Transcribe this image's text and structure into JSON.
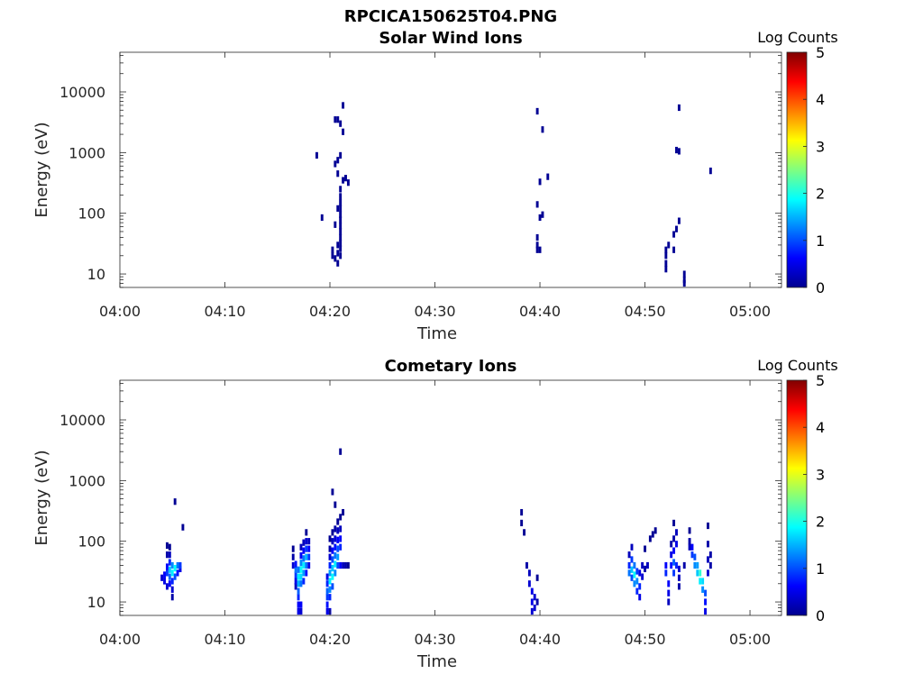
{
  "figure_title": "RPCICA150625T04.PNG",
  "chart_data": [
    {
      "type": "heatmap",
      "title": "Solar Wind Ions",
      "xlabel": "Time",
      "ylabel": "Energy (eV)",
      "xticks": [
        "04:00",
        "04:10",
        "04:20",
        "04:30",
        "04:40",
        "04:50",
        "05:00"
      ],
      "xlim": [
        "04:00",
        "05:03"
      ],
      "ylim": [
        6,
        45000
      ],
      "yscale": "log",
      "yticks": [
        "10",
        "100",
        "1000",
        "10000"
      ],
      "colorbar": {
        "label": "Log Counts",
        "min": 0,
        "max": 5,
        "ticks": [
          "0",
          "1",
          "2",
          "3",
          "4",
          "5"
        ]
      },
      "cells": [
        [
          "04:18:45",
          900,
          0.1
        ],
        [
          "04:19:15",
          85,
          0.1
        ],
        [
          "04:20:15",
          25,
          0.1
        ],
        [
          "04:20:15",
          20,
          0.1
        ],
        [
          "04:20:30",
          18,
          0.1
        ],
        [
          "04:20:30",
          65,
          0.1
        ],
        [
          "04:20:30",
          650,
          0.1
        ],
        [
          "04:20:30",
          3500,
          0.1
        ],
        [
          "04:20:45",
          15,
          0.1
        ],
        [
          "04:20:45",
          22,
          0.1
        ],
        [
          "04:20:45",
          30,
          0.1
        ],
        [
          "04:20:45",
          120,
          0.1
        ],
        [
          "04:20:45",
          450,
          0.1
        ],
        [
          "04:20:45",
          750,
          0.1
        ],
        [
          "04:20:45",
          3500,
          0.1
        ],
        [
          "04:21:00",
          20,
          0.1
        ],
        [
          "04:21:00",
          26,
          0.1
        ],
        [
          "04:21:00",
          32,
          0.1
        ],
        [
          "04:21:00",
          40,
          0.1
        ],
        [
          "04:21:00",
          50,
          0.1
        ],
        [
          "04:21:00",
          62,
          0.1
        ],
        [
          "04:21:00",
          78,
          0.1
        ],
        [
          "04:21:00",
          95,
          0.1
        ],
        [
          "04:21:00",
          120,
          0.1
        ],
        [
          "04:21:00",
          150,
          0.1
        ],
        [
          "04:21:00",
          190,
          0.1
        ],
        [
          "04:21:00",
          250,
          0.1
        ],
        [
          "04:21:00",
          900,
          0.1
        ],
        [
          "04:21:00",
          3000,
          0.1
        ],
        [
          "04:21:15",
          350,
          0.1
        ],
        [
          "04:21:15",
          2200,
          0.1
        ],
        [
          "04:21:15",
          6000,
          0.1
        ],
        [
          "04:21:30",
          380,
          0.1
        ],
        [
          "04:21:45",
          320,
          0.1
        ],
        [
          "04:39:45",
          25,
          0.1
        ],
        [
          "04:39:45",
          30,
          0.1
        ],
        [
          "04:39:45",
          40,
          0.1
        ],
        [
          "04:39:45",
          140,
          0.1
        ],
        [
          "04:39:45",
          4800,
          0.1
        ],
        [
          "04:40:00",
          85,
          0.1
        ],
        [
          "04:40:00",
          330,
          0.1
        ],
        [
          "04:40:15",
          95,
          0.1
        ],
        [
          "04:40:15",
          2400,
          0.1
        ],
        [
          "04:40:00",
          25,
          0.1
        ],
        [
          "04:40:45",
          400,
          0.1
        ],
        [
          "04:52:00",
          12,
          0.1
        ],
        [
          "04:52:00",
          15,
          0.1
        ],
        [
          "04:52:00",
          20,
          0.1
        ],
        [
          "04:52:00",
          25,
          0.1
        ],
        [
          "04:52:15",
          30,
          0.1
        ],
        [
          "04:52:45",
          25,
          0.1
        ],
        [
          "04:52:45",
          45,
          0.1
        ],
        [
          "04:53:00",
          55,
          0.1
        ],
        [
          "04:53:00",
          1100,
          0.1
        ],
        [
          "04:53:15",
          75,
          0.1
        ],
        [
          "04:53:15",
          1050,
          0.1
        ],
        [
          "04:53:15",
          5500,
          0.1
        ],
        [
          "04:53:45",
          7,
          0.1
        ],
        [
          "04:53:45",
          8,
          0.1
        ],
        [
          "04:53:45",
          10,
          0.1
        ],
        [
          "04:56:15",
          500,
          0.1
        ]
      ]
    },
    {
      "type": "heatmap",
      "title": "Cometary Ions",
      "xlabel": "Time",
      "ylabel": "Energy (eV)",
      "xticks": [
        "04:00",
        "04:10",
        "04:20",
        "04:30",
        "04:40",
        "04:50",
        "05:00"
      ],
      "xlim": [
        "04:00",
        "05:03"
      ],
      "ylim": [
        6,
        45000
      ],
      "yscale": "log",
      "yticks": [
        "10",
        "100",
        "1000",
        "10000"
      ],
      "colorbar": {
        "label": "Log Counts",
        "min": 0,
        "max": 5,
        "ticks": [
          "0",
          "1",
          "2",
          "3",
          "4",
          "5"
        ]
      },
      "cells": [
        [
          "04:04:00",
          25,
          0.4
        ],
        [
          "04:04:15",
          22,
          0.5
        ],
        [
          "04:04:15",
          28,
          0.6
        ],
        [
          "04:04:30",
          18,
          0.4
        ],
        [
          "04:04:30",
          30,
          0.9
        ],
        [
          "04:04:30",
          38,
          0.6
        ],
        [
          "04:04:30",
          60,
          0.2
        ],
        [
          "04:04:30",
          85,
          0.1
        ],
        [
          "04:04:45",
          20,
          0.6
        ],
        [
          "04:04:45",
          26,
          1.1
        ],
        [
          "04:04:45",
          34,
          1.6
        ],
        [
          "04:04:45",
          45,
          0.8
        ],
        [
          "04:04:45",
          60,
          0.3
        ],
        [
          "04:04:45",
          80,
          0.1
        ],
        [
          "04:05:00",
          22,
          0.8
        ],
        [
          "04:05:00",
          30,
          1.8
        ],
        [
          "04:05:00",
          40,
          1.3
        ],
        [
          "04:05:00",
          12,
          0.2
        ],
        [
          "04:05:00",
          16,
          0.4
        ],
        [
          "04:05:15",
          26,
          1.0
        ],
        [
          "04:05:15",
          36,
          1.9
        ],
        [
          "04:05:15",
          450,
          0.1
        ],
        [
          "04:05:30",
          30,
          0.7
        ],
        [
          "04:05:30",
          40,
          1.2
        ],
        [
          "04:05:45",
          35,
          0.5
        ],
        [
          "04:05:45",
          40,
          0.9
        ],
        [
          "04:06:00",
          170,
          0.1
        ],
        [
          "04:16:30",
          40,
          0.4
        ],
        [
          "04:16:30",
          55,
          0.2
        ],
        [
          "04:16:30",
          75,
          0.1
        ],
        [
          "04:16:45",
          18,
          0.3
        ],
        [
          "04:16:45",
          22,
          0.5
        ],
        [
          "04:16:45",
          28,
          0.9
        ],
        [
          "04:16:45",
          34,
          1.2
        ],
        [
          "04:16:45",
          42,
          0.7
        ],
        [
          "04:17:00",
          7,
          0.5
        ],
        [
          "04:17:00",
          9,
          0.6
        ],
        [
          "04:17:00",
          12,
          0.8
        ],
        [
          "04:17:00",
          15,
          1.1
        ],
        [
          "04:17:00",
          20,
          1.5
        ],
        [
          "04:17:00",
          26,
          1.8
        ],
        [
          "04:17:00",
          34,
          1.2
        ],
        [
          "04:17:15",
          7,
          0.4
        ],
        [
          "04:17:15",
          9,
          0.6
        ],
        [
          "04:17:15",
          20,
          1.2
        ],
        [
          "04:17:15",
          26,
          1.7
        ],
        [
          "04:17:15",
          34,
          1.9
        ],
        [
          "04:17:15",
          44,
          1.3
        ],
        [
          "04:17:15",
          58,
          0.6
        ],
        [
          "04:17:15",
          80,
          0.3
        ],
        [
          "04:17:30",
          22,
          0.8
        ],
        [
          "04:17:30",
          30,
          1.4
        ],
        [
          "04:17:30",
          40,
          1.8
        ],
        [
          "04:17:30",
          52,
          1.2
        ],
        [
          "04:17:30",
          70,
          0.6
        ],
        [
          "04:17:30",
          95,
          0.3
        ],
        [
          "04:17:45",
          30,
          0.7
        ],
        [
          "04:17:45",
          40,
          1.2
        ],
        [
          "04:17:45",
          55,
          1.5
        ],
        [
          "04:17:45",
          75,
          0.9
        ],
        [
          "04:17:45",
          100,
          0.4
        ],
        [
          "04:17:45",
          140,
          0.1
        ],
        [
          "04:18:00",
          40,
          0.5
        ],
        [
          "04:18:00",
          55,
          0.9
        ],
        [
          "04:18:00",
          75,
          0.6
        ],
        [
          "04:18:00",
          100,
          0.3
        ],
        [
          "04:19:45",
          7,
          0.5
        ],
        [
          "04:19:45",
          9,
          0.7
        ],
        [
          "04:19:45",
          12,
          0.9
        ],
        [
          "04:19:45",
          15,
          1.1
        ],
        [
          "04:19:45",
          20,
          0.8
        ],
        [
          "04:19:45",
          26,
          0.5
        ],
        [
          "04:20:00",
          7,
          0.4
        ],
        [
          "04:20:00",
          12,
          0.8
        ],
        [
          "04:20:00",
          16,
          1.3
        ],
        [
          "04:20:00",
          22,
          1.8
        ],
        [
          "04:20:00",
          30,
          1.4
        ],
        [
          "04:20:00",
          40,
          0.8
        ],
        [
          "04:20:00",
          55,
          0.4
        ],
        [
          "04:20:00",
          75,
          0.2
        ],
        [
          "04:20:00",
          110,
          0.1
        ],
        [
          "04:20:15",
          18,
          1.0
        ],
        [
          "04:20:15",
          26,
          1.9
        ],
        [
          "04:20:15",
          36,
          1.6
        ],
        [
          "04:20:15",
          50,
          1.0
        ],
        [
          "04:20:15",
          70,
          0.6
        ],
        [
          "04:20:15",
          100,
          0.3
        ],
        [
          "04:20:15",
          140,
          0.1
        ],
        [
          "04:20:15",
          650,
          0.1
        ],
        [
          "04:20:30",
          30,
          1.3
        ],
        [
          "04:20:30",
          42,
          1.8
        ],
        [
          "04:20:30",
          58,
          1.2
        ],
        [
          "04:20:30",
          80,
          0.7
        ],
        [
          "04:20:30",
          110,
          0.4
        ],
        [
          "04:20:30",
          160,
          0.2
        ],
        [
          "04:20:30",
          400,
          0.1
        ],
        [
          "04:20:45",
          40,
          1.0
        ],
        [
          "04:20:45",
          55,
          1.4
        ],
        [
          "04:20:45",
          75,
          1.0
        ],
        [
          "04:20:45",
          105,
          0.6
        ],
        [
          "04:20:45",
          150,
          0.3
        ],
        [
          "04:20:45",
          210,
          0.1
        ],
        [
          "04:21:00",
          40,
          0.6
        ],
        [
          "04:21:00",
          80,
          0.8
        ],
        [
          "04:21:00",
          110,
          0.6
        ],
        [
          "04:21:00",
          160,
          0.3
        ],
        [
          "04:21:00",
          250,
          0.1
        ],
        [
          "04:21:00",
          3000,
          0.1
        ],
        [
          "04:21:15",
          40,
          0.3
        ],
        [
          "04:21:15",
          300,
          0.1
        ],
        [
          "04:21:30",
          40,
          0.2
        ],
        [
          "04:21:45",
          40,
          0.1
        ],
        [
          "04:38:15",
          300,
          0.1
        ],
        [
          "04:38:15",
          200,
          0.1
        ],
        [
          "04:38:30",
          140,
          0.1
        ],
        [
          "04:38:45",
          40,
          0.2
        ],
        [
          "04:39:00",
          30,
          0.3
        ],
        [
          "04:39:00",
          20,
          0.4
        ],
        [
          "04:39:15",
          15,
          0.5
        ],
        [
          "04:39:15",
          10,
          0.5
        ],
        [
          "04:39:15",
          7,
          0.4
        ],
        [
          "04:39:30",
          12,
          0.4
        ],
        [
          "04:39:30",
          8,
          0.4
        ],
        [
          "04:39:45",
          25,
          0.1
        ],
        [
          "04:39:45",
          10,
          0.2
        ],
        [
          "04:48:30",
          30,
          1.2
        ],
        [
          "04:48:30",
          40,
          0.8
        ],
        [
          "04:48:30",
          60,
          0.3
        ],
        [
          "04:48:45",
          25,
          1.0
        ],
        [
          "04:48:45",
          34,
          1.6
        ],
        [
          "04:48:45",
          50,
          0.9
        ],
        [
          "04:48:45",
          80,
          0.3
        ],
        [
          "04:49:00",
          20,
          1.3
        ],
        [
          "04:49:00",
          28,
          1.9
        ],
        [
          "04:49:00",
          40,
          1.2
        ],
        [
          "04:49:15",
          15,
          0.8
        ],
        [
          "04:49:15",
          22,
          1.3
        ],
        [
          "04:49:15",
          32,
          0.9
        ],
        [
          "04:49:30",
          12,
          0.5
        ],
        [
          "04:49:30",
          18,
          0.8
        ],
        [
          "04:49:30",
          30,
          0.5
        ],
        [
          "04:49:45",
          26,
          0.4
        ],
        [
          "04:49:45",
          40,
          0.3
        ],
        [
          "04:50:00",
          35,
          0.2
        ],
        [
          "04:50:00",
          75,
          0.1
        ],
        [
          "04:50:15",
          40,
          0.3
        ],
        [
          "04:50:30",
          110,
          0.1
        ],
        [
          "04:50:45",
          130,
          0.1
        ],
        [
          "04:51:00",
          150,
          0.1
        ],
        [
          "04:52:00",
          40,
          0.6
        ],
        [
          "04:52:00",
          30,
          0.8
        ],
        [
          "04:52:15",
          20,
          0.6
        ],
        [
          "04:52:15",
          14,
          0.5
        ],
        [
          "04:52:15",
          10,
          0.3
        ],
        [
          "04:52:30",
          40,
          0.7
        ],
        [
          "04:52:30",
          60,
          0.5
        ],
        [
          "04:52:30",
          90,
          0.2
        ],
        [
          "04:52:45",
          30,
          0.9
        ],
        [
          "04:52:45",
          45,
          1.1
        ],
        [
          "04:52:45",
          70,
          0.6
        ],
        [
          "04:52:45",
          110,
          0.2
        ],
        [
          "04:52:45",
          200,
          0.1
        ],
        [
          "04:53:00",
          40,
          0.8
        ],
        [
          "04:53:00",
          90,
          0.5
        ],
        [
          "04:53:00",
          140,
          0.3
        ],
        [
          "04:53:15",
          35,
          0.4
        ],
        [
          "04:53:15",
          25,
          0.3
        ],
        [
          "04:53:15",
          18,
          0.2
        ],
        [
          "04:53:45",
          40,
          0.2
        ],
        [
          "04:54:15",
          80,
          0.3
        ],
        [
          "04:54:15",
          100,
          0.2
        ],
        [
          "04:54:15",
          150,
          0.1
        ],
        [
          "04:54:30",
          60,
          0.9
        ],
        [
          "04:54:30",
          80,
          0.6
        ],
        [
          "04:54:45",
          40,
          1.3
        ],
        [
          "04:54:45",
          55,
          1.0
        ],
        [
          "04:55:00",
          30,
          1.6
        ],
        [
          "04:55:00",
          40,
          1.4
        ],
        [
          "04:55:15",
          22,
          1.8
        ],
        [
          "04:55:15",
          30,
          2.1
        ],
        [
          "04:55:30",
          16,
          1.3
        ],
        [
          "04:55:30",
          22,
          1.7
        ],
        [
          "04:55:45",
          10,
          0.7
        ],
        [
          "04:55:45",
          14,
          1.0
        ],
        [
          "04:55:45",
          7,
          0.5
        ],
        [
          "04:56:00",
          30,
          0.4
        ],
        [
          "04:56:00",
          50,
          0.3
        ],
        [
          "04:56:00",
          90,
          0.2
        ],
        [
          "04:56:00",
          180,
          0.1
        ],
        [
          "04:56:15",
          40,
          0.2
        ],
        [
          "04:56:15",
          60,
          0.2
        ]
      ]
    }
  ]
}
